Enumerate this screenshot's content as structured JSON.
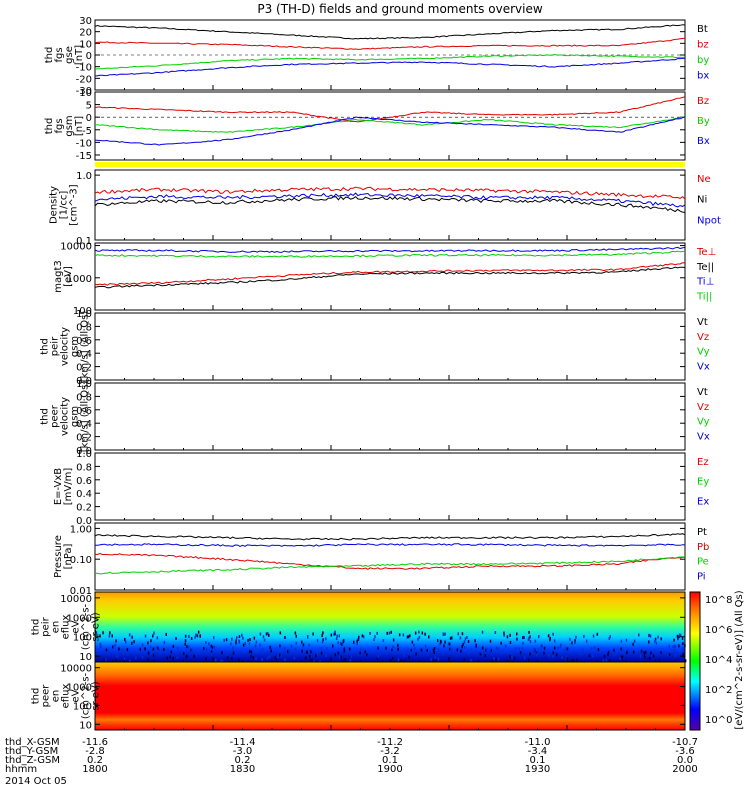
{
  "title": "P3 (TH-D) fields and ground moments overview",
  "colors": {
    "black": "#000000",
    "red": "#e00000",
    "green": "#00d000",
    "blue": "#0000e0",
    "yellow": "#ffff00"
  },
  "chart_data": [
    {
      "type": "line",
      "id": "fgs_gse",
      "ylabel": [
        "thd",
        "fgs",
        "gse",
        "[nT]"
      ],
      "ylim": [
        -30,
        30
      ],
      "ticks": [
        "30",
        "20",
        "10",
        "0",
        "-10",
        "-20",
        "-30"
      ],
      "tickvals": [
        30,
        20,
        10,
        0,
        -10,
        -20,
        -30
      ],
      "series": [
        {
          "name": "Bt",
          "color": "black",
          "values": [
            25,
            23,
            20,
            17,
            14,
            15,
            18,
            21,
            22,
            26
          ]
        },
        {
          "name": "bz",
          "color": "red",
          "values": [
            11,
            10,
            9,
            7,
            5,
            7,
            8,
            8,
            8,
            14
          ]
        },
        {
          "name": "by",
          "color": "green",
          "values": [
            -12,
            -9,
            -5,
            -3,
            -4,
            -3,
            -1,
            0,
            -1,
            -2
          ]
        },
        {
          "name": "bx",
          "color": "blue",
          "values": [
            -18,
            -15,
            -11,
            -8,
            -7,
            -6,
            -8,
            -10,
            -7,
            -3
          ]
        }
      ]
    },
    {
      "type": "line",
      "id": "fgs_gsm",
      "ylabel": [
        "thd",
        "fgs",
        "gsm",
        "[nT]"
      ],
      "ylim": [
        -17,
        10
      ],
      "ticks": [
        "10",
        "5",
        "0",
        "-5",
        "-10",
        "-15"
      ],
      "tickvals": [
        10,
        5,
        0,
        -5,
        -10,
        -15
      ],
      "series": [
        {
          "name": "Bz",
          "color": "red",
          "values": [
            4,
            3,
            2,
            2,
            -2,
            2,
            1,
            1,
            2,
            8
          ]
        },
        {
          "name": "By",
          "color": "green",
          "values": [
            -3,
            -5,
            -6,
            -4,
            -1,
            -3,
            -1,
            -3,
            -4,
            0
          ]
        },
        {
          "name": "Bx",
          "color": "blue",
          "values": [
            -9,
            -11,
            -9,
            -5,
            0,
            -2,
            -3,
            -4,
            -6,
            0
          ]
        }
      ]
    },
    {
      "type": "line",
      "id": "density",
      "ylabel": [
        "Density",
        "[1/cc]",
        "[cm^-3]"
      ],
      "yscale": "log",
      "ylim": [
        0.1,
        1.2
      ],
      "ticks": [
        "1.0",
        "0.1"
      ],
      "tickvals": [
        1.0,
        0.1
      ],
      "series": [
        {
          "name": "Ne",
          "color": "red",
          "values": [
            0.55,
            0.6,
            0.55,
            0.6,
            0.62,
            0.6,
            0.58,
            0.55,
            0.5,
            0.45
          ]
        },
        {
          "name": "Ni",
          "color": "black",
          "values": [
            0.35,
            0.4,
            0.38,
            0.42,
            0.45,
            0.43,
            0.4,
            0.4,
            0.35,
            0.28
          ]
        },
        {
          "name": "Npot",
          "color": "blue",
          "values": [
            0.42,
            0.47,
            0.45,
            0.48,
            0.5,
            0.48,
            0.45,
            0.45,
            0.4,
            0.33
          ]
        }
      ]
    },
    {
      "type": "line",
      "id": "temp",
      "ylabel": [
        "magt3",
        "[eV]"
      ],
      "yscale": "log",
      "ylim": [
        100,
        12000
      ],
      "ticks": [
        "10000",
        "1000",
        "100"
      ],
      "tickvals": [
        10000,
        1000,
        100
      ],
      "series": [
        {
          "name": "Te⊥",
          "color": "red",
          "values": [
            600,
            700,
            900,
            1200,
            1500,
            1600,
            1700,
            1700,
            1800,
            2800
          ]
        },
        {
          "name": "Te||",
          "color": "black",
          "values": [
            500,
            600,
            700,
            900,
            1300,
            1400,
            1400,
            1400,
            1500,
            2200
          ]
        },
        {
          "name": "Ti⊥",
          "color": "blue",
          "values": [
            7000,
            7000,
            6500,
            6500,
            6800,
            6800,
            7000,
            7000,
            7500,
            8500
          ]
        },
        {
          "name": "Ti||",
          "color": "green",
          "values": [
            5000,
            4800,
            4600,
            4600,
            4800,
            5000,
            5000,
            5000,
            5300,
            6500
          ]
        }
      ]
    },
    {
      "type": "line",
      "id": "peir_vel",
      "ylabel": [
        "thd",
        "peir",
        "velocity",
        "gsm",
        "[km/s] (All Qs)"
      ],
      "ylim": [
        0,
        1
      ],
      "ticks": [
        "1.0",
        "0.8",
        "0.6",
        "0.4",
        "0.2",
        "0.0"
      ],
      "tickvals": [
        1,
        0.8,
        0.6,
        0.4,
        0.2,
        0
      ],
      "series": [
        {
          "name": "Vt",
          "color": "black",
          "values": []
        },
        {
          "name": "Vz",
          "color": "red",
          "values": []
        },
        {
          "name": "Vy",
          "color": "green",
          "values": []
        },
        {
          "name": "Vx",
          "color": "blue",
          "values": []
        }
      ]
    },
    {
      "type": "line",
      "id": "peer_vel",
      "ylabel": [
        "thd",
        "peer",
        "velocity",
        "gsm",
        "[km/s] (All Qs)"
      ],
      "ylim": [
        0,
        1
      ],
      "ticks": [
        "1.0",
        "0.8",
        "0.6",
        "0.4",
        "0.2",
        "0.0"
      ],
      "tickvals": [
        1,
        0.8,
        0.6,
        0.4,
        0.2,
        0
      ],
      "series": [
        {
          "name": "Vt",
          "color": "black",
          "values": []
        },
        {
          "name": "Vz",
          "color": "red",
          "values": []
        },
        {
          "name": "Vy",
          "color": "green",
          "values": []
        },
        {
          "name": "Vx",
          "color": "blue",
          "values": []
        }
      ]
    },
    {
      "type": "line",
      "id": "efield",
      "ylabel": [
        "E=-VxB",
        "[mV/m]"
      ],
      "ylim": [
        0,
        1
      ],
      "ticks": [
        "1.0",
        "0.8",
        "0.6",
        "0.4",
        "0.2",
        "0.0"
      ],
      "tickvals": [
        1,
        0.8,
        0.6,
        0.4,
        0.2,
        0
      ],
      "series": [
        {
          "name": "Ez",
          "color": "red",
          "values": []
        },
        {
          "name": "Ey",
          "color": "green",
          "values": []
        },
        {
          "name": "Ex",
          "color": "blue",
          "values": []
        }
      ]
    },
    {
      "type": "line",
      "id": "pressure",
      "ylabel": [
        "Pressure",
        "[nPa]"
      ],
      "yscale": "log",
      "ylim": [
        0.01,
        1.5
      ],
      "ticks": [
        "1.00",
        "0.10",
        "0.01"
      ],
      "tickvals": [
        1,
        0.1,
        0.01
      ],
      "series": [
        {
          "name": "Pt",
          "color": "black",
          "values": [
            0.6,
            0.55,
            0.5,
            0.45,
            0.45,
            0.5,
            0.5,
            0.5,
            0.55,
            0.65
          ]
        },
        {
          "name": "Pb",
          "color": "red",
          "values": [
            0.15,
            0.13,
            0.1,
            0.07,
            0.05,
            0.05,
            0.06,
            0.06,
            0.07,
            0.12
          ]
        },
        {
          "name": "Pe",
          "color": "green",
          "values": [
            0.035,
            0.04,
            0.045,
            0.055,
            0.06,
            0.07,
            0.07,
            0.075,
            0.085,
            0.12
          ]
        },
        {
          "name": "Pi",
          "color": "blue",
          "values": [
            0.3,
            0.3,
            0.28,
            0.27,
            0.3,
            0.3,
            0.3,
            0.28,
            0.28,
            0.3
          ]
        }
      ]
    },
    {
      "type": "heatmap",
      "id": "peir_en",
      "ylabel": [
        "thd",
        "peir",
        "en",
        "eflux",
        "eV",
        "(cm^2-s-",
        "sr-eV)"
      ],
      "yscale": "log",
      "ylim": [
        5,
        20000
      ],
      "ticks": [
        "10000",
        "1000",
        "100",
        "10"
      ],
      "tickvals": [
        10000,
        1000,
        100,
        10
      ]
    },
    {
      "type": "heatmap",
      "id": "peer_en",
      "ylabel": [
        "thd",
        "peer",
        "en",
        "eflux",
        "eV",
        "(cm^2-s-",
        "sr-eV)"
      ],
      "yscale": "log",
      "ylim": [
        5,
        20000
      ],
      "ticks": [
        "10000",
        "1000",
        "100",
        "10"
      ],
      "tickvals": [
        10000,
        1000,
        100,
        10
      ]
    }
  ],
  "colorbar": {
    "label": "[eV/(cm^2-s-sr-eV)] (All Qs)",
    "ticks": [
      "10^8",
      "10^6",
      "10^4",
      "10^2",
      "10^0"
    ]
  },
  "x_axis": {
    "rows": [
      {
        "label": "thd_X-GSM",
        "values": [
          "-11.6",
          "-11.4",
          "-11.2",
          "-11.0",
          "-10.7"
        ]
      },
      {
        "label": "thd_Y-GSM",
        "values": [
          "-2.8",
          "-3.0",
          "-3.2",
          "-3.4",
          "-3.6"
        ]
      },
      {
        "label": "thd_Z-GSM",
        "values": [
          "0.2",
          "0.2",
          "0.1",
          "0.1",
          "0.0"
        ]
      },
      {
        "label": "hhmm",
        "values": [
          "1800",
          "1830",
          "1900",
          "1930",
          "2000"
        ]
      }
    ],
    "date": "2014 Oct 05"
  }
}
